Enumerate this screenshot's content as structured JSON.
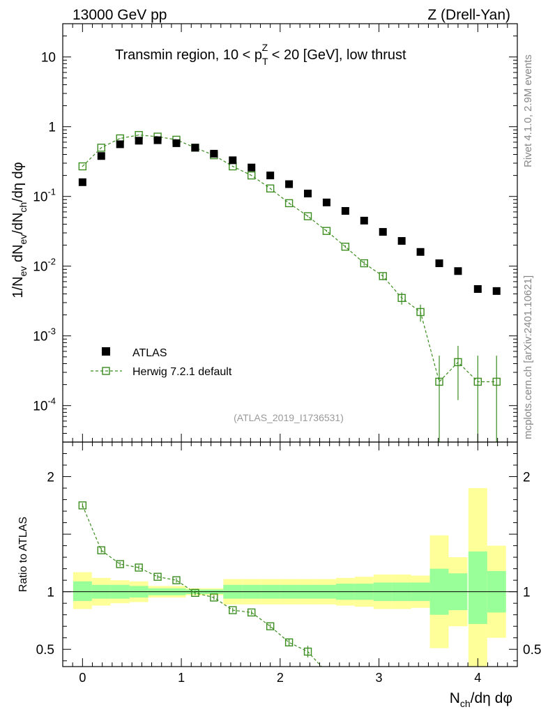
{
  "header": {
    "left": "13000 GeV pp",
    "right": "Z (Drell-Yan)"
  },
  "side": {
    "rivet": "Rivet 4.1.0,  2.9M events",
    "mcplots": "mcplots.cern.ch [arXiv:2401.10621]"
  },
  "chart_data": {
    "type": "scatter",
    "title": "Transmin region, 10 < p_T^Z < 20 [GeV], low thrust",
    "analysis_tag": "(ATLAS_2019_I1736531)",
    "xlabel": "N_ch/dη dφ",
    "ylabel": "1/N_ev dN_ev/dN_ch/dη dφ",
    "ratio_ylabel": "Ratio to ATLAS",
    "xlim": [
      -0.2,
      4.4
    ],
    "ylim": [
      3e-05,
      30
    ],
    "ratio_ylim": [
      0.35,
      2.3
    ],
    "yscale": "log",
    "x_ticks": [
      "0",
      "1",
      "2",
      "3",
      "4"
    ],
    "y_ticks": [
      "10^-4",
      "10^-3",
      "10^-2",
      "10^-1",
      "1",
      "10"
    ],
    "ratio_ticks": [
      "0.5",
      "1",
      "2"
    ],
    "x": [
      0.0,
      0.19,
      0.38,
      0.57,
      0.76,
      0.95,
      1.14,
      1.33,
      1.52,
      1.71,
      1.9,
      2.09,
      2.28,
      2.47,
      2.66,
      2.85,
      3.04,
      3.23,
      3.42,
      3.61,
      3.8,
      4.0,
      4.19
    ],
    "series": [
      {
        "name": "ATLAS",
        "values": [
          0.16,
          0.38,
          0.56,
          0.63,
          0.64,
          0.58,
          0.5,
          0.41,
          0.33,
          0.26,
          0.2,
          0.15,
          0.11,
          0.082,
          0.062,
          0.045,
          0.031,
          0.023,
          0.016,
          0.011,
          0.0085,
          0.0047,
          0.0044
        ]
      },
      {
        "name": "Herwig 7.2.1 default",
        "values": [
          0.27,
          0.5,
          0.68,
          0.76,
          0.72,
          0.65,
          0.5,
          0.39,
          0.27,
          0.2,
          0.13,
          0.08,
          0.052,
          0.032,
          0.019,
          0.011,
          0.0072,
          0.0035,
          0.0022,
          0.00022,
          0.00042,
          0.00022,
          0.00022
        ],
        "errors": [
          0.004,
          0.006,
          0.007,
          0.008,
          0.008,
          0.007,
          0.006,
          0.005,
          0.004,
          0.003,
          0.0025,
          0.002,
          0.0015,
          0.001,
          0.0008,
          0.0008,
          0.0009,
          0.0007,
          0.0006,
          0.0003,
          0.0003,
          0.0003,
          0.0003
        ]
      }
    ],
    "ratio": {
      "herwig": [
        1.75,
        1.36,
        1.24,
        1.21,
        1.13,
        1.1,
        0.99,
        0.95,
        0.84,
        0.82,
        0.7,
        0.56,
        0.48
      ],
      "herwig_errors": [
        0.02,
        0.02,
        0.02,
        0.02,
        0.02,
        0.02,
        0.02,
        0.02,
        0.02,
        0.02,
        0.02,
        0.03,
        0.05
      ],
      "stat_band": [
        [
          0.92,
          1.09
        ],
        [
          0.94,
          1.06
        ],
        [
          0.94,
          1.06
        ],
        [
          0.95,
          1.05
        ],
        [
          0.97,
          1.03
        ],
        [
          0.97,
          1.03
        ],
        [
          0.98,
          1.02
        ],
        [
          0.98,
          1.02
        ],
        [
          0.94,
          1.06
        ],
        [
          0.94,
          1.06
        ],
        [
          0.94,
          1.06
        ],
        [
          0.94,
          1.06
        ],
        [
          0.94,
          1.06
        ],
        [
          0.94,
          1.06
        ],
        [
          0.93,
          1.07
        ],
        [
          0.93,
          1.07
        ],
        [
          0.92,
          1.08
        ],
        [
          0.92,
          1.08
        ],
        [
          0.92,
          1.08
        ],
        [
          0.8,
          1.2
        ],
        [
          0.84,
          1.16
        ],
        [
          0.72,
          1.35
        ],
        [
          0.82,
          1.18
        ]
      ],
      "total_band": [
        [
          0.85,
          1.17
        ],
        [
          0.88,
          1.12
        ],
        [
          0.9,
          1.1
        ],
        [
          0.91,
          1.09
        ],
        [
          0.95,
          1.05
        ],
        [
          0.95,
          1.05
        ],
        [
          0.97,
          1.03
        ],
        [
          0.97,
          1.03
        ],
        [
          0.89,
          1.11
        ],
        [
          0.89,
          1.11
        ],
        [
          0.89,
          1.11
        ],
        [
          0.89,
          1.11
        ],
        [
          0.89,
          1.11
        ],
        [
          0.89,
          1.11
        ],
        [
          0.88,
          1.12
        ],
        [
          0.87,
          1.13
        ],
        [
          0.85,
          1.15
        ],
        [
          0.85,
          1.15
        ],
        [
          0.86,
          1.14
        ],
        [
          0.51,
          1.49
        ],
        [
          0.7,
          1.3
        ],
        [
          0.35,
          1.9
        ],
        [
          0.6,
          1.4
        ]
      ]
    },
    "legend": "center-left",
    "colors": {
      "atlas": "#000000",
      "herwig": "#3a8c1e",
      "stat": "#99ff99",
      "total": "#ffff99"
    }
  }
}
